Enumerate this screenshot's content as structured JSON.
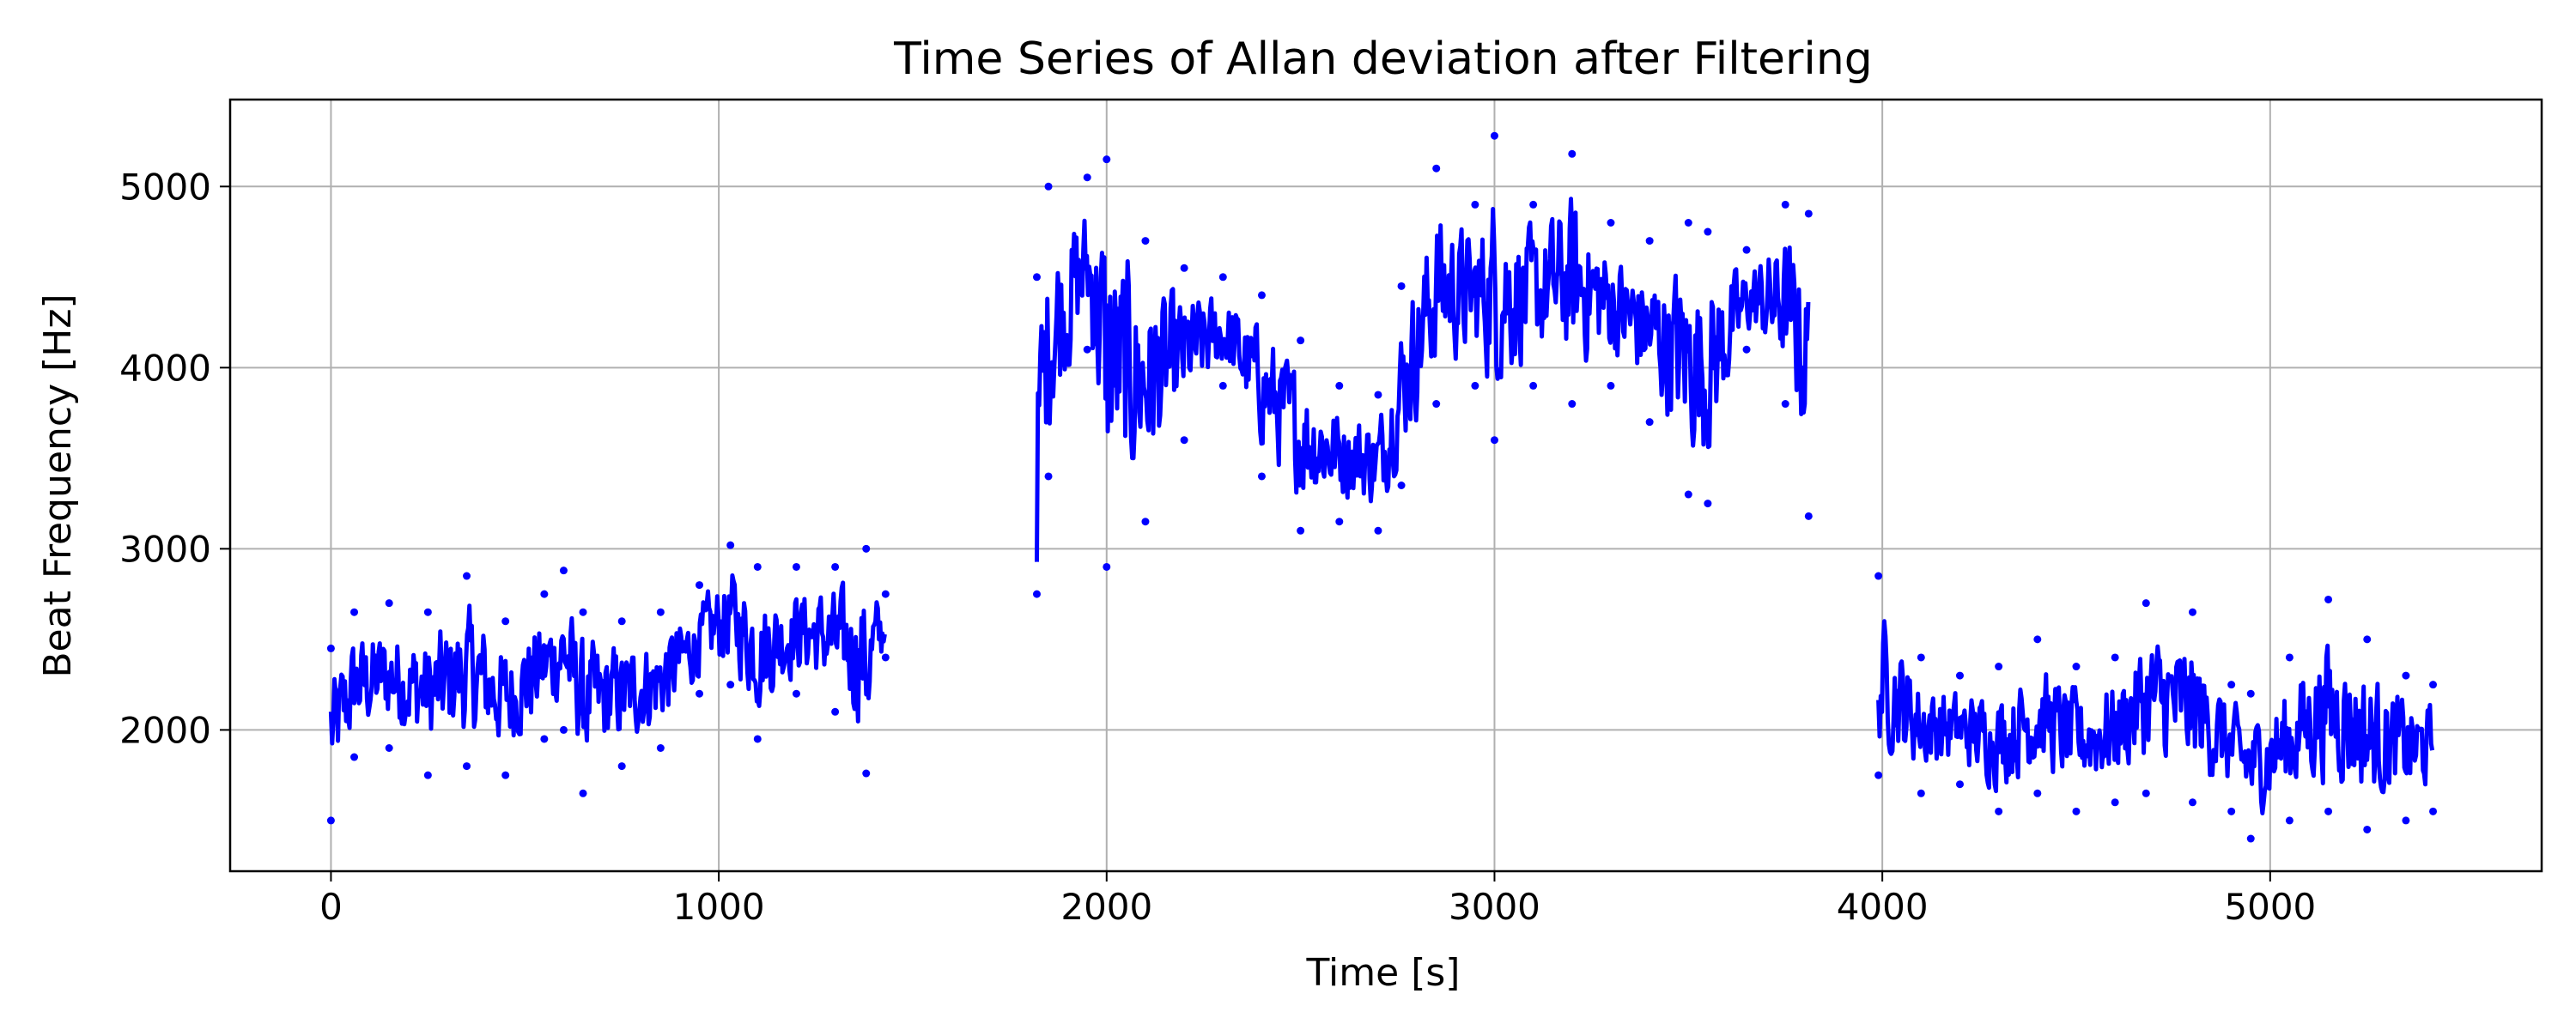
{
  "chart_data": {
    "type": "scatter",
    "title": "Time Series of Allan deviation after Filtering",
    "xlabel": "Time [s]",
    "ylabel": "Beat Frequency [Hz]",
    "xlim": [
      -260,
      5700
    ],
    "ylim": [
      1220,
      5480
    ],
    "xticks": [
      0,
      1000,
      2000,
      3000,
      4000,
      5000
    ],
    "yticks": [
      2000,
      3000,
      4000,
      5000
    ],
    "grid": true,
    "marker_color": "#0000ff",
    "series": [
      {
        "segments": [
          {
            "x_range": [
              0,
              1430
            ],
            "envelope": [
              [
                0,
                1500,
                2450
              ],
              [
                60,
                1850,
                2650
              ],
              [
                150,
                1900,
                2700
              ],
              [
                250,
                1750,
                2650
              ],
              [
                350,
                1800,
                2850
              ],
              [
                450,
                1750,
                2600
              ],
              [
                550,
                1950,
                2750
              ],
              [
                600,
                2000,
                2880
              ],
              [
                650,
                1650,
                2650
              ],
              [
                750,
                1800,
                2600
              ],
              [
                850,
                1900,
                2650
              ],
              [
                950,
                2200,
                2800
              ],
              [
                1030,
                2250,
                3020
              ],
              [
                1100,
                1950,
                2900
              ],
              [
                1200,
                2200,
                2900
              ],
              [
                1300,
                2100,
                2900
              ],
              [
                1380,
                1760,
                3000
              ],
              [
                1430,
                2400,
                2750
              ]
            ]
          },
          {
            "x_range": [
              1820,
              3810
            ],
            "envelope": [
              [
                1820,
                2750,
                4500
              ],
              [
                1850,
                3400,
                5000
              ],
              [
                1950,
                4100,
                5050
              ],
              [
                2000,
                2900,
                5150
              ],
              [
                2100,
                3150,
                4700
              ],
              [
                2200,
                3600,
                4550
              ],
              [
                2300,
                3900,
                4500
              ],
              [
                2400,
                3400,
                4400
              ],
              [
                2500,
                3100,
                4150
              ],
              [
                2600,
                3150,
                3900
              ],
              [
                2700,
                3100,
                3850
              ],
              [
                2760,
                3350,
                4450
              ],
              [
                2850,
                3800,
                5100
              ],
              [
                2950,
                3900,
                4900
              ],
              [
                3000,
                3600,
                5280
              ],
              [
                3100,
                3900,
                4900
              ],
              [
                3200,
                3800,
                5180
              ],
              [
                3300,
                3900,
                4800
              ],
              [
                3400,
                3700,
                4700
              ],
              [
                3500,
                3300,
                4800
              ],
              [
                3550,
                3250,
                4750
              ],
              [
                3650,
                4100,
                4650
              ],
              [
                3750,
                3800,
                4900
              ],
              [
                3810,
                3180,
                4850
              ]
            ]
          },
          {
            "x_range": [
              3990,
              5420
            ],
            "envelope": [
              [
                3990,
                1750,
                2850
              ],
              [
                4100,
                1650,
                2400
              ],
              [
                4200,
                1700,
                2300
              ],
              [
                4300,
                1550,
                2350
              ],
              [
                4400,
                1650,
                2500
              ],
              [
                4500,
                1550,
                2350
              ],
              [
                4600,
                1600,
                2400
              ],
              [
                4680,
                1650,
                2700
              ],
              [
                4800,
                1600,
                2650
              ],
              [
                4900,
                1550,
                2250
              ],
              [
                4950,
                1400,
                2200
              ],
              [
                5050,
                1500,
                2400
              ],
              [
                5150,
                1550,
                2720
              ],
              [
                5250,
                1450,
                2500
              ],
              [
                5350,
                1500,
                2300
              ],
              [
                5420,
                1550,
                2250
              ]
            ]
          }
        ]
      }
    ]
  }
}
